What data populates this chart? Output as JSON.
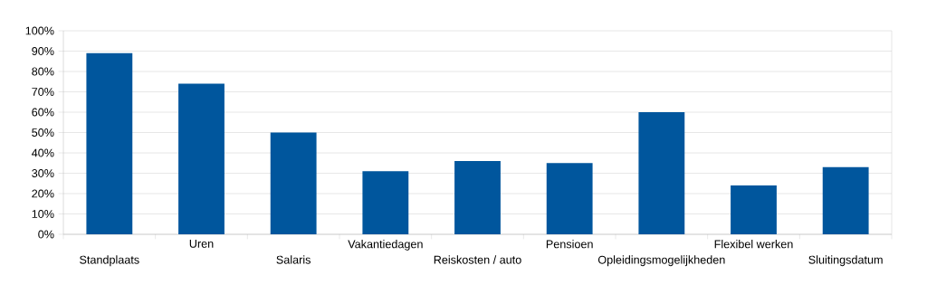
{
  "chart_data": {
    "type": "bar",
    "categories": [
      "Standplaats",
      "Uren",
      "Salaris",
      "Vakantiedagen",
      "Reiskosten / auto",
      "Pensioen",
      "Opleidingsmogelijkheden",
      "Flexibel werken",
      "Sluitingsdatum"
    ],
    "values": [
      89,
      74,
      50,
      31,
      36,
      35,
      60,
      24,
      33
    ],
    "color": "#00569d",
    "ylim": [
      0,
      100
    ],
    "yticks": [
      {
        "value": 0,
        "label": "0%"
      },
      {
        "value": 10,
        "label": "10%"
      },
      {
        "value": 20,
        "label": "20%"
      },
      {
        "value": 30,
        "label": "30%"
      },
      {
        "value": 40,
        "label": "40%"
      },
      {
        "value": 50,
        "label": "50%"
      },
      {
        "value": 60,
        "label": "60%"
      },
      {
        "value": 70,
        "label": "70%"
      },
      {
        "value": 80,
        "label": "80%"
      },
      {
        "value": 90,
        "label": "90%"
      },
      {
        "value": 100,
        "label": "100%"
      }
    ],
    "grid": "y"
  }
}
